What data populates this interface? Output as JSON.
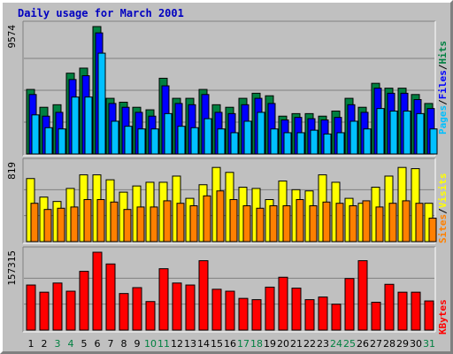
{
  "title": "Daily usage for March 2001",
  "colors": {
    "background": "#c0c0c0",
    "hits": "#008040",
    "files": "#0000ff",
    "pages": "#00c0ff",
    "visits": "#ffff00",
    "sites": "#ff8000",
    "kbytes": "#ff0000",
    "title": "#0000c0",
    "weekend_day": "#008040",
    "weekday": "#000000"
  },
  "chart_data": [
    {
      "type": "bar",
      "panel": "top",
      "y_label": "9574",
      "ylim": [
        0,
        9574
      ],
      "legend": [
        "Pages",
        "Files",
        "Hits"
      ],
      "categories": [
        "1",
        "2",
        "3",
        "4",
        "5",
        "6",
        "7",
        "8",
        "9",
        "10",
        "11",
        "12",
        "13",
        "14",
        "15",
        "16",
        "17",
        "18",
        "19",
        "20",
        "21",
        "22",
        "23",
        "24",
        "25",
        "26",
        "27",
        "28",
        "29",
        "30",
        "31"
      ],
      "series": [
        {
          "name": "Hits",
          "values": [
            4849,
            3510,
            3701,
            6071,
            6451,
            9574,
            4183,
            3891,
            3510,
            3320,
            5690,
            4183,
            4183,
            4849,
            3701,
            3510,
            4183,
            4564,
            4374,
            2843,
            3034,
            3034,
            2843,
            3225,
            4183,
            3510,
            5309,
            4944,
            4944,
            4468,
            3796
          ]
        },
        {
          "name": "Files",
          "values": [
            4468,
            2843,
            3129,
            5593,
            5880,
            9098,
            3796,
            3510,
            3129,
            2843,
            5119,
            3796,
            3701,
            4468,
            3129,
            3034,
            3701,
            4183,
            3796,
            2557,
            2748,
            2652,
            2557,
            2748,
            3701,
            3129,
            4944,
            4563,
            4563,
            4087,
            3415
          ]
        },
        {
          "name": "Pages",
          "values": [
            2938,
            1977,
            1882,
            4277,
            4278,
            7574,
            2462,
            2082,
            1882,
            1882,
            3034,
            2082,
            1977,
            2652,
            1882,
            1598,
            2462,
            3129,
            1882,
            1598,
            1598,
            1787,
            1501,
            1598,
            2462,
            1882,
            3415,
            3224,
            3224,
            3034,
            1882
          ]
        }
      ]
    },
    {
      "type": "bar",
      "panel": "middle",
      "y_label": "819",
      "ylim": [
        0,
        819
      ],
      "legend": [
        "Sites",
        "Visits"
      ],
      "categories": [
        "1",
        "2",
        "3",
        "4",
        "5",
        "6",
        "7",
        "8",
        "9",
        "10",
        "11",
        "12",
        "13",
        "14",
        "15",
        "16",
        "17",
        "18",
        "19",
        "20",
        "21",
        "22",
        "23",
        "24",
        "25",
        "26",
        "27",
        "28",
        "29",
        "30",
        "31"
      ],
      "series": [
        {
          "name": "Visits",
          "values": [
            663,
            468,
            422,
            559,
            702,
            702,
            650,
            520,
            585,
            624,
            624,
            689,
            455,
            598,
            780,
            728,
            572,
            559,
            442,
            637,
            546,
            533,
            702,
            624,
            455,
            403,
            572,
            689,
            780,
            767,
            403
          ]
        },
        {
          "name": "Sites",
          "values": [
            403,
            338,
            351,
            364,
            442,
            442,
            416,
            338,
            364,
            364,
            429,
            403,
            377,
            481,
            533,
            442,
            377,
            351,
            377,
            377,
            442,
            377,
            416,
            403,
            377,
            429,
            364,
            403,
            429,
            403,
            247
          ]
        }
      ]
    },
    {
      "type": "bar",
      "panel": "bottom",
      "y_label": "157315",
      "ylim": [
        0,
        157315
      ],
      "legend": [
        "KBytes"
      ],
      "categories": [
        "1",
        "2",
        "3",
        "4",
        "5",
        "6",
        "7",
        "8",
        "9",
        "10",
        "11",
        "12",
        "13",
        "14",
        "15",
        "16",
        "17",
        "18",
        "19",
        "20",
        "21",
        "22",
        "23",
        "24",
        "25",
        "26",
        "27",
        "28",
        "29",
        "30",
        "31"
      ],
      "series": [
        {
          "name": "KBytes",
          "values": [
            91100,
            76600,
            95100,
            78600,
            118700,
            157300,
            133600,
            73900,
            85800,
            57700,
            124000,
            95100,
            91100,
            140200,
            82500,
            78600,
            64100,
            61500,
            86800,
            106800,
            84800,
            61500,
            66800,
            52300,
            104200,
            140200,
            56300,
            92500,
            76600,
            76600,
            58900
          ]
        }
      ]
    }
  ]
}
